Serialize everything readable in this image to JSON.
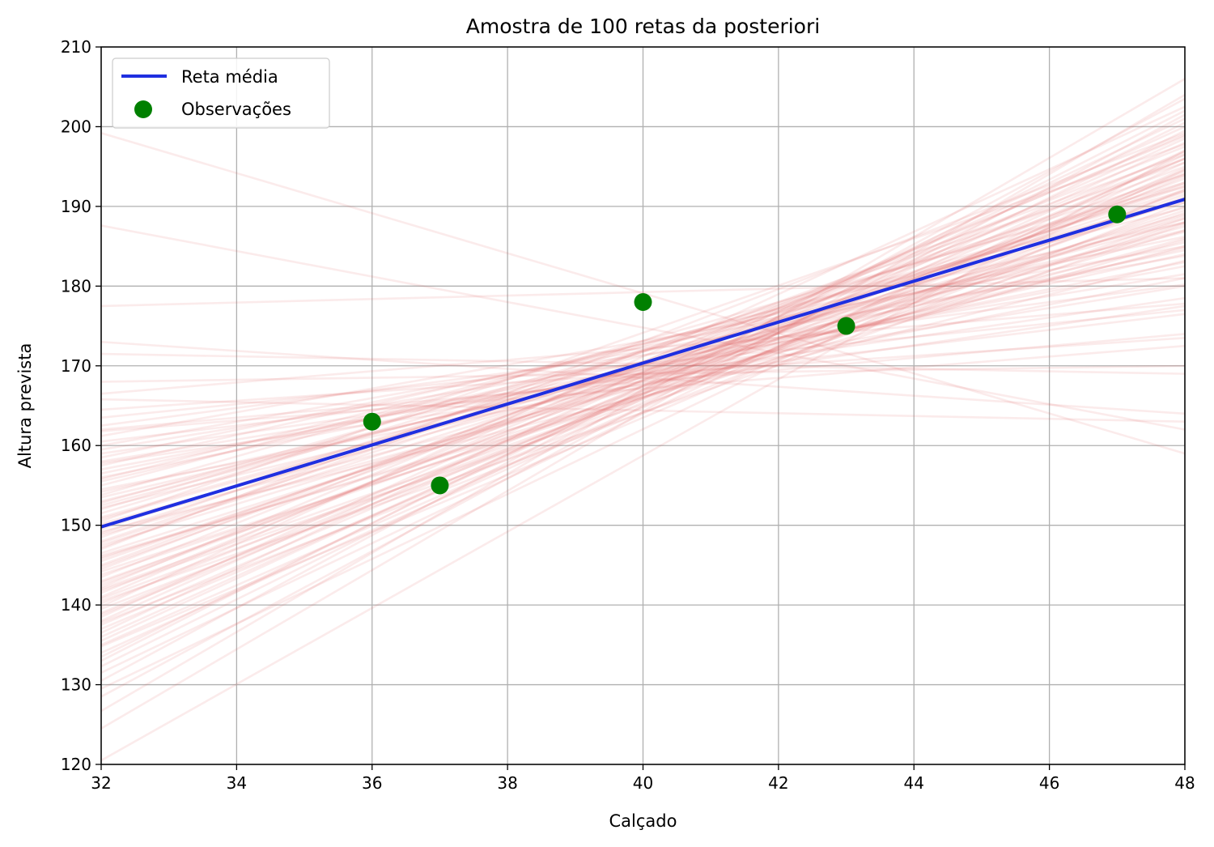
{
  "chart_data": {
    "type": "line",
    "title": "Amostra de 100 retas da posteriori",
    "xlabel": "Calçado",
    "ylabel": "Altura prevista",
    "xlim": [
      32,
      48
    ],
    "ylim": [
      120,
      210
    ],
    "xticks": [
      "32",
      "34",
      "36",
      "38",
      "40",
      "42",
      "44",
      "46",
      "48"
    ],
    "yticks": [
      "120",
      "130",
      "140",
      "150",
      "160",
      "170",
      "180",
      "190",
      "200",
      "210"
    ],
    "grid": true,
    "legend_position": "upper-left",
    "legend": [
      {
        "label": "Reta média",
        "kind": "line",
        "color": "#1f2fe0"
      },
      {
        "label": "Observações",
        "kind": "marker",
        "color": "#008000"
      }
    ],
    "mean_line": {
      "name": "Reta média",
      "color": "#1f2fe0",
      "x": [
        32,
        48
      ],
      "y": [
        149.8,
        190.9
      ]
    },
    "observations": {
      "name": "Observações",
      "color": "#008000",
      "points": [
        {
          "x": 36,
          "y": 163
        },
        {
          "x": 37,
          "y": 155
        },
        {
          "x": 40,
          "y": 178
        },
        {
          "x": 43,
          "y": 175
        },
        {
          "x": 47,
          "y": 189
        }
      ]
    },
    "posterior_samples": {
      "color": "#e06666",
      "opacity": 0.13,
      "x": [
        32,
        48
      ],
      "lines": [
        [
          199.2,
          159.0
        ],
        [
          187.6,
          162.0
        ],
        [
          177.5,
          181.0
        ],
        [
          173.0,
          164.0
        ],
        [
          171.5,
          169.0
        ],
        [
          168.0,
          170.0
        ],
        [
          165.8,
          163.0
        ],
        [
          162.0,
          174.0
        ],
        [
          160.5,
          176.5
        ],
        [
          161.2,
          185.0
        ],
        [
          159.0,
          178.5
        ],
        [
          157.5,
          188.0
        ],
        [
          156.0,
          183.0
        ],
        [
          155.0,
          190.5
        ],
        [
          153.5,
          185.5
        ],
        [
          152.8,
          191.0
        ],
        [
          152.0,
          193.0
        ],
        [
          151.0,
          189.0
        ],
        [
          150.2,
          187.5
        ],
        [
          149.5,
          194.0
        ],
        [
          148.8,
          186.0
        ],
        [
          148.0,
          192.5
        ],
        [
          147.2,
          196.5
        ],
        [
          146.5,
          189.5
        ],
        [
          145.8,
          191.5
        ],
        [
          145.0,
          195.0
        ],
        [
          144.2,
          188.0
        ],
        [
          143.5,
          197.5
        ],
        [
          142.8,
          193.5
        ],
        [
          142.0,
          190.0
        ],
        [
          141.0,
          199.0
        ],
        [
          140.2,
          194.5
        ],
        [
          139.5,
          192.0
        ],
        [
          138.5,
          200.0
        ],
        [
          137.5,
          196.0
        ],
        [
          136.5,
          201.0
        ],
        [
          135.5,
          198.0
        ],
        [
          134.0,
          195.5
        ],
        [
          133.0,
          202.0
        ],
        [
          132.3,
          199.5
        ],
        [
          130.5,
          203.5
        ],
        [
          128.5,
          201.5
        ],
        [
          126.7,
          206.0
        ],
        [
          124.5,
          204.0
        ],
        [
          120.5,
          197.0
        ],
        [
          158.0,
          180.0
        ],
        [
          154.2,
          184.0
        ],
        [
          150.8,
          188.5
        ],
        [
          147.8,
          190.8
        ],
        [
          144.8,
          193.0
        ],
        [
          141.5,
          196.8
        ],
        [
          138.0,
          198.5
        ],
        [
          161.8,
          172.5
        ],
        [
          163.5,
          177.0
        ],
        [
          157.0,
          182.5
        ],
        [
          153.0,
          186.8
        ],
        [
          149.0,
          191.8
        ],
        [
          146.0,
          187.0
        ],
        [
          143.0,
          191.0
        ],
        [
          139.0,
          196.0
        ],
        [
          136.0,
          197.0
        ],
        [
          133.5,
          200.5
        ],
        [
          155.5,
          187.0
        ],
        [
          152.5,
          188.0
        ],
        [
          148.5,
          195.5
        ],
        [
          145.5,
          192.8
        ],
        [
          142.5,
          194.0
        ],
        [
          140.8,
          191.2
        ],
        [
          137.0,
          193.8
        ],
        [
          159.5,
          181.5
        ],
        [
          156.5,
          184.5
        ],
        [
          154.5,
          181.0
        ],
        [
          151.5,
          192.0
        ],
        [
          150.0,
          185.0
        ],
        [
          147.5,
          188.8
        ],
        [
          144.5,
          196.0
        ],
        [
          141.8,
          188.5
        ],
        [
          139.8,
          202.5
        ],
        [
          135.0,
          194.8
        ],
        [
          131.5,
          196.5
        ],
        [
          166.5,
          177.8
        ],
        [
          164.5,
          173.5
        ],
        [
          162.5,
          180.2
        ],
        [
          160.0,
          183.8
        ],
        [
          158.5,
          186.2
        ],
        [
          157.8,
          177.5
        ],
        [
          155.8,
          189.8
        ],
        [
          153.8,
          192.5
        ],
        [
          152.2,
          184.8
        ],
        [
          150.5,
          197.8
        ],
        [
          149.2,
          183.2
        ],
        [
          147.0,
          199.2
        ],
        [
          146.2,
          185.8
        ],
        [
          143.8,
          189.2
        ],
        [
          142.2,
          198.8
        ],
        [
          140.5,
          187.8
        ],
        [
          138.8,
          194.2
        ],
        [
          137.8,
          190.5
        ],
        [
          134.8,
          192.2
        ],
        [
          129.5,
          194.6
        ]
      ]
    }
  }
}
